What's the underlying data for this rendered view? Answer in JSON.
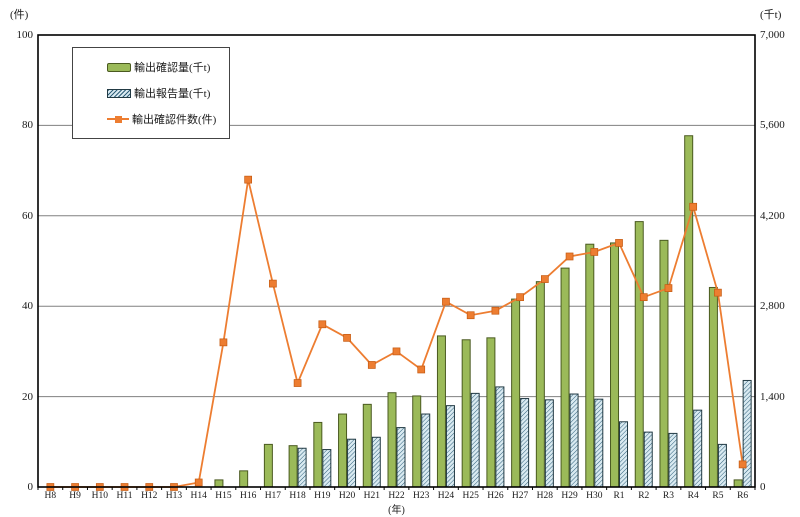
{
  "chart_data": {
    "type": "bar+line combo",
    "title": "",
    "x_axis": {
      "unit_label": "(年)",
      "categories": [
        "H8",
        "H9",
        "H10",
        "H11",
        "H12",
        "H13",
        "H14",
        "H15",
        "H16",
        "H17",
        "H18",
        "H19",
        "H20",
        "H21",
        "H22",
        "H23",
        "H24",
        "H25",
        "H26",
        "H27",
        "H28",
        "H29",
        "H30",
        "R1",
        "R2",
        "R3",
        "R4",
        "R5",
        "R6"
      ]
    },
    "y_left": {
      "unit_label": "(件)",
      "min": 0,
      "max": 100,
      "ticks": [
        0,
        20,
        40,
        60,
        80,
        100
      ]
    },
    "y_right": {
      "unit_label": "(千t)",
      "min": 0,
      "max": 7000,
      "ticks": [
        0,
        1400,
        2800,
        4200,
        5600,
        7000
      ],
      "tick_labels": [
        "0",
        "1,400",
        "2,800",
        "4,200",
        "5,600",
        "7,000"
      ]
    },
    "grid": "horizontal",
    "legend_position": "top-left-inside",
    "series": [
      {
        "name": "輸出確認量(千t)",
        "type": "bar",
        "axis": "right",
        "style": "solid-green",
        "values": [
          0,
          0,
          0,
          0,
          0,
          0,
          0,
          110,
          250,
          660,
          640,
          1000,
          1130,
          1280,
          1460,
          1410,
          2340,
          2280,
          2310,
          2910,
          3180,
          3390,
          3760,
          3780,
          4110,
          3820,
          5440,
          3090,
          110
        ]
      },
      {
        "name": "輸出報告量(千t)",
        "type": "bar",
        "axis": "right",
        "style": "hatched-blue",
        "values": [
          0,
          0,
          0,
          0,
          0,
          0,
          0,
          0,
          0,
          0,
          600,
          580,
          740,
          770,
          920,
          1130,
          1260,
          1450,
          1550,
          1370,
          1350,
          1440,
          1360,
          1010,
          850,
          830,
          1190,
          660,
          1650
        ]
      },
      {
        "name": "輸出確認件数(件)",
        "type": "line",
        "axis": "left",
        "style": "orange-square-markers",
        "values": [
          0,
          0,
          0,
          0,
          0,
          0,
          1,
          32,
          68,
          45,
          23,
          36,
          33,
          27,
          30,
          26,
          41,
          38,
          39,
          42,
          46,
          51,
          52,
          54,
          42,
          44,
          62,
          43,
          5
        ]
      }
    ],
    "colors": {
      "bar_green": "#9bba59",
      "bar_green_border": "#4a5a20",
      "hatch_bg": "#d9eaf1",
      "hatch_line": "#2f5f7a",
      "line_orange": "#ed7d31",
      "grid": "#808080",
      "frame": "#000000"
    }
  }
}
